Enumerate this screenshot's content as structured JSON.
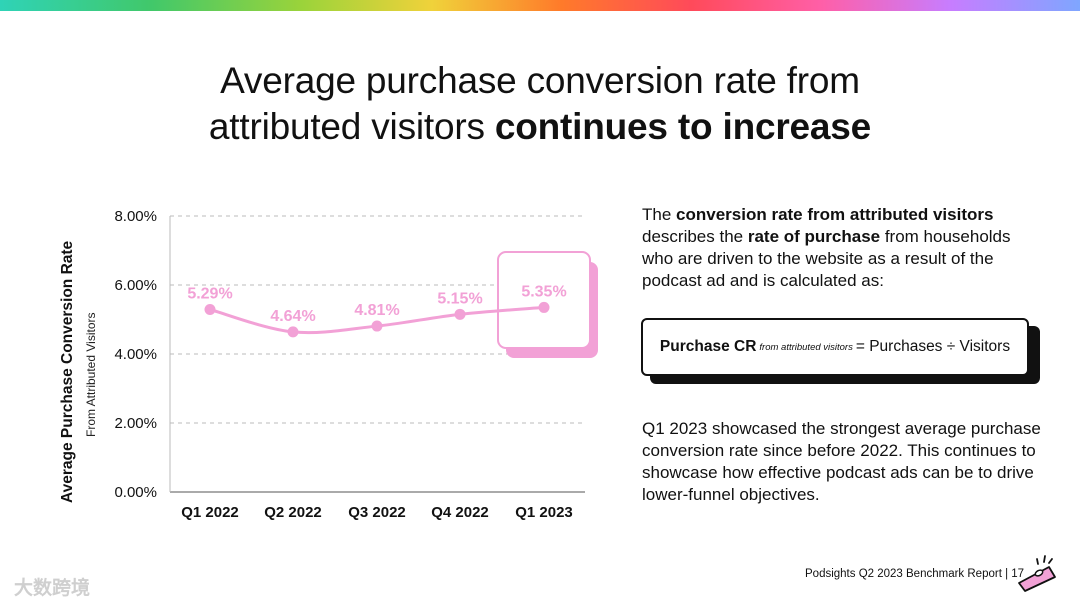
{
  "title": {
    "line1": "Average purchase conversion rate from",
    "line2_plain": "attributed visitors",
    "line2_bold": "continues to increase"
  },
  "chart_data": {
    "type": "line",
    "title": "",
    "ylabel": "Average Purchase Conversion Rate",
    "ylabel_sub": "From Attributed Visitors",
    "xlabel": "",
    "categories": [
      "Q1 2022",
      "Q2 2022",
      "Q3 2022",
      "Q4 2022",
      "Q1 2023"
    ],
    "values": [
      5.29,
      4.64,
      4.81,
      5.15,
      5.35
    ],
    "data_labels": [
      "5.29%",
      "4.64%",
      "4.81%",
      "5.15%",
      "5.35%"
    ],
    "ylim": [
      0,
      8
    ],
    "yticks": [
      0,
      2,
      4,
      6,
      8
    ],
    "ytick_labels": [
      "0.00%",
      "2.00%",
      "4.00%",
      "6.00%",
      "8.00%"
    ],
    "grid": true,
    "highlight_category": "Q1 2023",
    "line_color": "#f2a1d6",
    "label_color": "#f2a1d6"
  },
  "description": {
    "p1": "The ",
    "b1": "conversion rate from attributed visitors",
    "p2": " describes the ",
    "b2": "rate of purchase",
    "p3": " from households who are driven to the website as a result of the podcast ad and is calculated as:"
  },
  "formula": {
    "lhs": "Purchase CR",
    "subscript": "from attributed visitors",
    "rhs": "= Purchases ÷ Visitors"
  },
  "note": "Q1 2023 showcased the strongest average purchase conversion rate since before 2022. This continues to showcase how effective podcast ads can be to drive lower-funnel objectives.",
  "footer": "Podsights Q2 2023 Benchmark Report | 17",
  "footer_icon": "kazoo-icon",
  "watermark": "大数跨境",
  "colors": {
    "accent_pink": "#f2a1d6",
    "text": "#111111"
  }
}
